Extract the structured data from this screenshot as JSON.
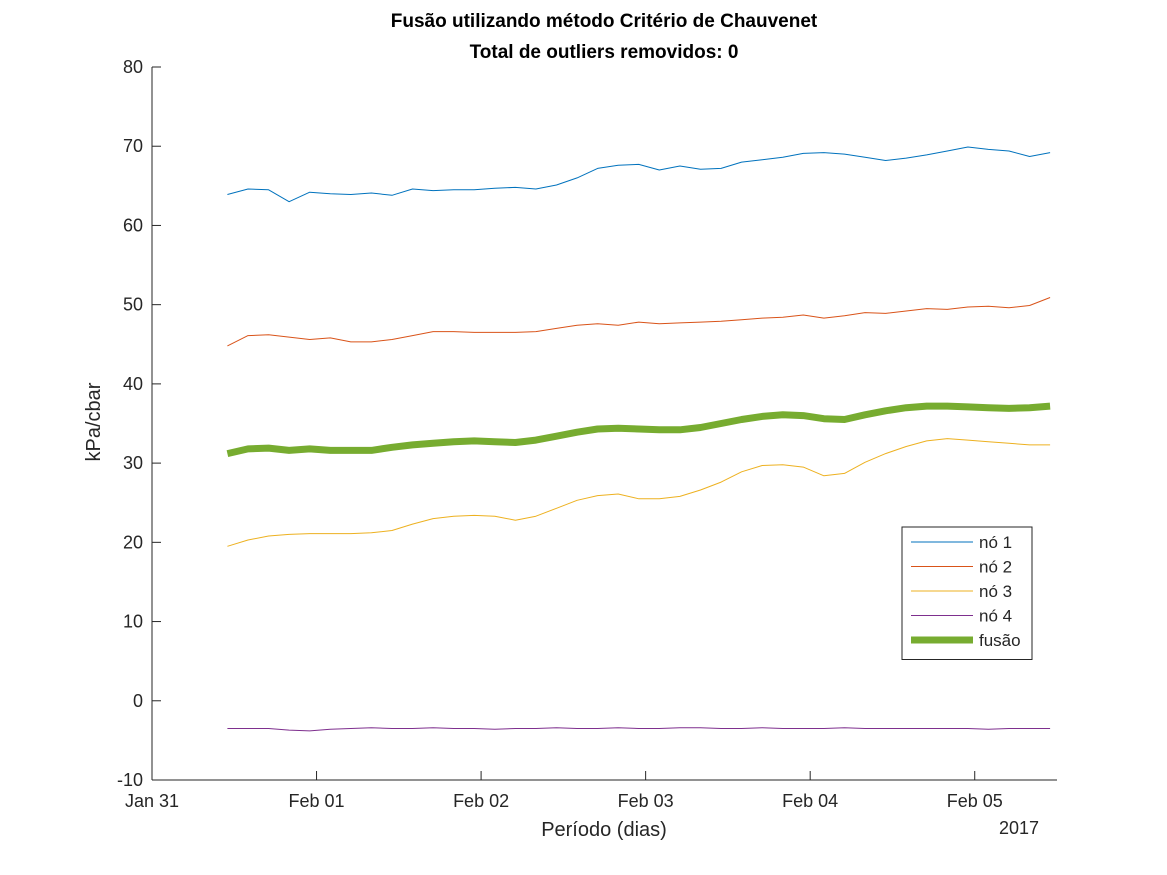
{
  "chart_data": {
    "type": "line",
    "title": "Fusão utilizando método Critério de Chauvenet",
    "subtitle": "Total de outliers removidos: 0",
    "xlabel": "Período (dias)",
    "ylabel": "kPa/cbar",
    "x_axis_type": "date",
    "x_range": [
      "2017-01-31T00:00",
      "2017-02-05T12:00"
    ],
    "x_ticks": [
      "2017-01-31",
      "2017-02-01",
      "2017-02-02",
      "2017-02-03",
      "2017-02-04",
      "2017-02-05"
    ],
    "x_tick_labels": [
      "Jan 31",
      "Feb 01",
      "Feb 02",
      "Feb 03",
      "Feb 04",
      "Feb 05"
    ],
    "x_year_label": "2017",
    "ylim": [
      -10,
      80
    ],
    "y_ticks": [
      -10,
      0,
      10,
      20,
      30,
      40,
      50,
      60,
      70,
      80
    ],
    "y_tick_labels": [
      "-10",
      "0",
      "10",
      "20",
      "30",
      "40",
      "50",
      "60",
      "70",
      "80"
    ],
    "grid": false,
    "legend_position": "right",
    "x": [
      "2017-01-31T11:00",
      "2017-01-31T14:00",
      "2017-01-31T17:00",
      "2017-01-31T20:00",
      "2017-01-31T23:00",
      "2017-02-01T02:00",
      "2017-02-01T05:00",
      "2017-02-01T08:00",
      "2017-02-01T11:00",
      "2017-02-01T14:00",
      "2017-02-01T17:00",
      "2017-02-01T20:00",
      "2017-02-01T23:00",
      "2017-02-02T02:00",
      "2017-02-02T05:00",
      "2017-02-02T08:00",
      "2017-02-02T11:00",
      "2017-02-02T14:00",
      "2017-02-02T17:00",
      "2017-02-02T20:00",
      "2017-02-02T23:00",
      "2017-02-03T02:00",
      "2017-02-03T05:00",
      "2017-02-03T08:00",
      "2017-02-03T11:00",
      "2017-02-03T14:00",
      "2017-02-03T17:00",
      "2017-02-03T20:00",
      "2017-02-03T23:00",
      "2017-02-04T02:00",
      "2017-02-04T05:00",
      "2017-02-04T08:00",
      "2017-02-04T11:00",
      "2017-02-04T14:00",
      "2017-02-04T17:00",
      "2017-02-04T20:00",
      "2017-02-04T23:00",
      "2017-02-05T02:00",
      "2017-02-05T05:00",
      "2017-02-05T08:00",
      "2017-02-05T11:00"
    ],
    "series": [
      {
        "name": "nó 1",
        "color": "#0072BD",
        "width": 1,
        "values": [
          63.9,
          64.6,
          64.5,
          63.0,
          64.2,
          64.0,
          63.9,
          64.1,
          63.8,
          64.6,
          64.4,
          64.5,
          64.5,
          64.7,
          64.8,
          64.6,
          65.1,
          66.0,
          67.2,
          67.6,
          67.7,
          67.0,
          67.5,
          67.1,
          67.2,
          68.0,
          68.3,
          68.6,
          69.1,
          69.2,
          69.0,
          68.6,
          68.2,
          68.5,
          68.9,
          69.4,
          69.9,
          69.6,
          69.4,
          68.7,
          69.2
        ]
      },
      {
        "name": "nó 2",
        "color": "#D95319",
        "width": 1,
        "values": [
          44.8,
          46.1,
          46.2,
          45.9,
          45.6,
          45.8,
          45.3,
          45.3,
          45.6,
          46.1,
          46.6,
          46.6,
          46.5,
          46.5,
          46.5,
          46.6,
          47.0,
          47.4,
          47.6,
          47.4,
          47.8,
          47.6,
          47.7,
          47.8,
          47.9,
          48.1,
          48.3,
          48.4,
          48.7,
          48.3,
          48.6,
          49.0,
          48.9,
          49.2,
          49.5,
          49.4,
          49.7,
          49.8,
          49.6,
          49.9,
          50.9
        ]
      },
      {
        "name": "nó 3",
        "color": "#EDB120",
        "width": 1,
        "values": [
          19.5,
          20.3,
          20.8,
          21.0,
          21.1,
          21.1,
          21.1,
          21.2,
          21.5,
          22.3,
          23.0,
          23.3,
          23.4,
          23.3,
          22.8,
          23.3,
          24.3,
          25.3,
          25.9,
          26.1,
          25.5,
          25.5,
          25.8,
          26.6,
          27.6,
          28.9,
          29.7,
          29.8,
          29.5,
          28.4,
          28.7,
          30.1,
          31.2,
          32.1,
          32.8,
          33.1,
          32.9,
          32.7,
          32.5,
          32.3,
          32.3
        ]
      },
      {
        "name": "nó 4",
        "color": "#7E2F8E",
        "width": 1,
        "values": [
          -3.5,
          -3.5,
          -3.5,
          -3.7,
          -3.8,
          -3.6,
          -3.5,
          -3.4,
          -3.5,
          -3.5,
          -3.4,
          -3.5,
          -3.5,
          -3.6,
          -3.5,
          -3.5,
          -3.4,
          -3.5,
          -3.5,
          -3.4,
          -3.5,
          -3.5,
          -3.4,
          -3.4,
          -3.5,
          -3.5,
          -3.4,
          -3.5,
          -3.5,
          -3.5,
          -3.4,
          -3.5,
          -3.5,
          -3.5,
          -3.5,
          -3.5,
          -3.5,
          -3.6,
          -3.5,
          -3.5,
          -3.5
        ]
      },
      {
        "name": "fusão",
        "color": "#77AC30",
        "width": 7,
        "values": [
          31.2,
          31.8,
          31.9,
          31.6,
          31.8,
          31.6,
          31.6,
          31.6,
          32.0,
          32.3,
          32.5,
          32.7,
          32.8,
          32.7,
          32.6,
          32.9,
          33.4,
          33.9,
          34.3,
          34.4,
          34.3,
          34.2,
          34.2,
          34.5,
          35.0,
          35.5,
          35.9,
          36.1,
          36.0,
          35.6,
          35.5,
          36.1,
          36.6,
          37.0,
          37.2,
          37.2,
          37.1,
          37.0,
          36.9,
          37.0,
          37.2
        ]
      }
    ]
  }
}
